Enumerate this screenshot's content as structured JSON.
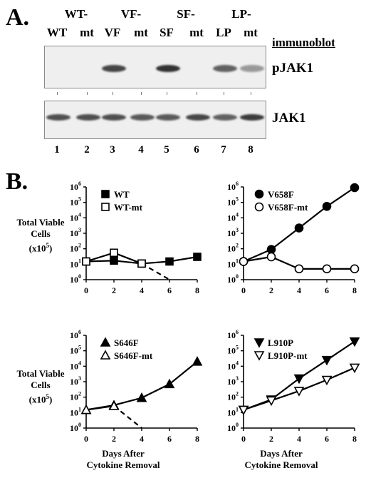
{
  "panel_a": {
    "letter": "A.",
    "top_labels": [
      "WT-",
      "VF-",
      "SF-",
      "LP-"
    ],
    "lane_labels": [
      "WT",
      "mt",
      "VF",
      "mt",
      "SF",
      "mt",
      "LP",
      "mt"
    ],
    "lane_numbers": [
      "1",
      "2",
      "3",
      "4",
      "5",
      "6",
      "7",
      "8"
    ],
    "immunoblot_label": "immunoblot",
    "blot_labels": [
      "pJAK1",
      "JAK1"
    ],
    "pjak1_intensity": [
      0,
      0,
      0.85,
      0,
      0.95,
      0,
      0.7,
      0.35
    ],
    "jak1_intensity": [
      0.8,
      0.8,
      0.8,
      0.75,
      0.75,
      0.85,
      0.7,
      0.9
    ]
  },
  "panel_b": {
    "letter": "B.",
    "ylabel_lines": [
      "Total Viable",
      "Cells",
      "(x10",
      "5",
      ")"
    ],
    "xlabel_lines": [
      "Days After",
      "Cytokine Removal"
    ]
  },
  "chart_data": [
    {
      "type": "line",
      "x": [
        0,
        2,
        4,
        6,
        8
      ],
      "yscale": "log",
      "ylim": [
        1,
        1000000
      ],
      "series": [
        {
          "name": "WT",
          "x": [
            0,
            2,
            4,
            6,
            8
          ],
          "values": [
            15,
            17,
            11,
            15,
            30
          ],
          "marker": "filled-square",
          "line": "solid"
        },
        {
          "name": "WT-mt",
          "x": [
            0,
            2,
            4,
            6
          ],
          "values": [
            15,
            55,
            11,
            1
          ],
          "marker": "open-square",
          "line": "solid-then-dashed"
        }
      ]
    },
    {
      "type": "line",
      "x": [
        0,
        2,
        4,
        6,
        8
      ],
      "yscale": "log",
      "ylim": [
        1,
        1000000
      ],
      "series": [
        {
          "name": "V658F",
          "x": [
            0,
            2,
            4,
            6,
            8
          ],
          "values": [
            15,
            90,
            2200,
            55000,
            900000
          ],
          "marker": "filled-circle",
          "line": "solid"
        },
        {
          "name": "V658F-mt",
          "x": [
            0,
            2,
            4,
            6,
            8
          ],
          "values": [
            15,
            30,
            5,
            5,
            5
          ],
          "marker": "open-circle",
          "line": "solid"
        }
      ]
    },
    {
      "type": "line",
      "x": [
        0,
        2,
        4,
        6,
        8
      ],
      "yscale": "log",
      "ylim": [
        1,
        1000000
      ],
      "series": [
        {
          "name": "S646F",
          "x": [
            0,
            2,
            4,
            6,
            8
          ],
          "values": [
            15,
            30,
            90,
            700,
            20000
          ],
          "marker": "filled-triangle-up",
          "line": "solid"
        },
        {
          "name": "S646F-mt",
          "x": [
            0,
            2,
            4
          ],
          "values": [
            15,
            27,
            1
          ],
          "marker": "open-triangle-up",
          "line": "solid-then-dashed"
        }
      ]
    },
    {
      "type": "line",
      "x": [
        0,
        2,
        4,
        6,
        8
      ],
      "yscale": "log",
      "ylim": [
        1,
        1000000
      ],
      "series": [
        {
          "name": "L910P",
          "x": [
            0,
            2,
            4,
            6,
            8
          ],
          "values": [
            15,
            70,
            1600,
            25000,
            400000
          ],
          "marker": "filled-triangle-down",
          "line": "solid"
        },
        {
          "name": "L910P-mt",
          "x": [
            0,
            2,
            4,
            6,
            8
          ],
          "values": [
            15,
            60,
            250,
            1300,
            8000
          ],
          "marker": "open-triangle-down",
          "line": "solid"
        }
      ]
    }
  ]
}
